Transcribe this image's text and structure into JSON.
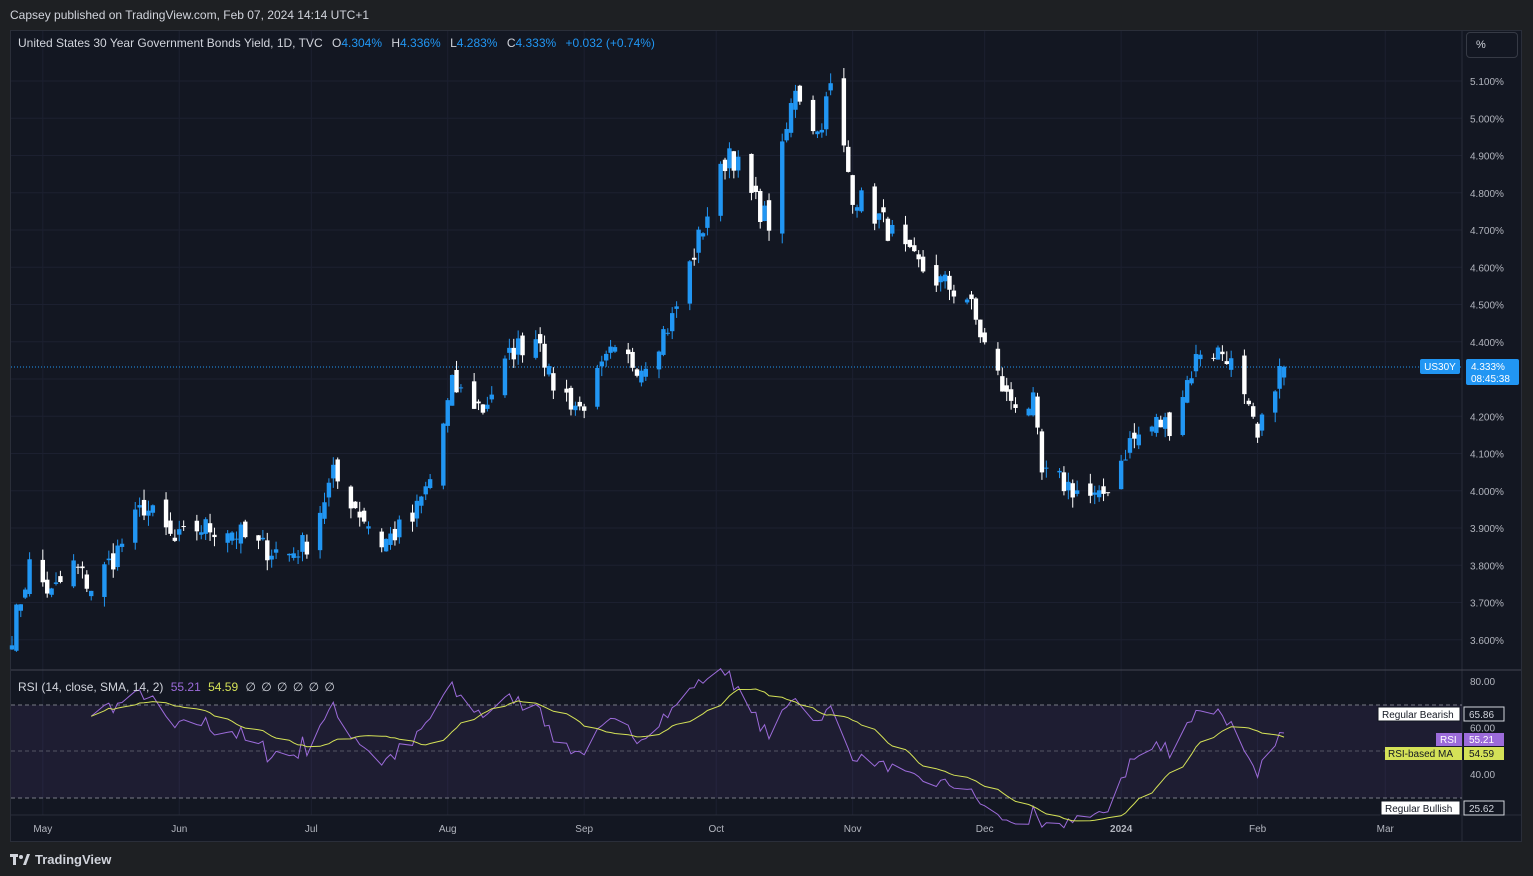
{
  "publisher": "Capsey published on TradingView.com, Feb 07, 2024 14:14 UTC+1",
  "legend": {
    "title": "United States 30 Year Government Bonds Yield, 1D, TVC",
    "o_label": "O",
    "o_value": "4.304%",
    "h_label": "H",
    "h_value": "4.336%",
    "l_label": "L",
    "l_value": "4.283%",
    "c_label": "C",
    "c_value": "4.333%",
    "change": "+0.032 (+0.74%)"
  },
  "scale_button": "%",
  "price_tag": {
    "symbol": "US30Y",
    "price": "4.333%",
    "countdown": "08:45:38"
  },
  "rsi": {
    "title": "RSI (14, close, SMA, 14, 2)",
    "rsi_value": "55.21",
    "ma_value": "54.59",
    "nulls": "∅ ∅ ∅ ∅ ∅ ∅",
    "tags": {
      "bearish_label": "Regular Bearish",
      "bearish_value": "65.86",
      "rsi_label": "RSI",
      "rsi_value": "55.21",
      "ma_label": "RSI-based MA",
      "ma_value": "54.59",
      "bullish_label": "Regular Bullish",
      "bullish_value": "25.62"
    }
  },
  "footer": {
    "brand": "TradingView"
  },
  "colors": {
    "up": "#2196f3",
    "down": "#ffffff",
    "rsi": "#9c6bda",
    "rsi_ma": "#d4e157",
    "background": "#131722",
    "accent": "#2962ff"
  },
  "chart_data": {
    "type": "candlestick",
    "series": [
      {
        "name": "US30Y",
        "ohlc": []
      }
    ],
    "waypoints": [
      [
        "2023-04-24",
        3.62
      ],
      [
        "2023-04-28",
        3.8
      ],
      [
        "2023-05-03",
        3.72
      ],
      [
        "2023-05-08",
        3.8
      ],
      [
        "2023-05-12",
        3.74
      ],
      [
        "2023-05-17",
        3.82
      ],
      [
        "2023-05-24",
        3.96
      ],
      [
        "2023-05-31",
        3.86
      ],
      [
        "2023-06-05",
        3.9
      ],
      [
        "2023-06-12",
        3.9
      ],
      [
        "2023-06-19",
        3.85
      ],
      [
        "2023-06-26",
        3.83
      ],
      [
        "2023-06-30",
        3.86
      ],
      [
        "2023-07-06",
        4.04
      ],
      [
        "2023-07-11",
        3.96
      ],
      [
        "2023-07-17",
        3.86
      ],
      [
        "2023-07-24",
        3.92
      ],
      [
        "2023-07-28",
        4.03
      ],
      [
        "2023-08-02",
        4.28
      ],
      [
        "2023-08-09",
        4.22
      ],
      [
        "2023-08-16",
        4.38
      ],
      [
        "2023-08-22",
        4.42
      ],
      [
        "2023-08-24",
        4.3
      ],
      [
        "2023-08-31",
        4.22
      ],
      [
        "2023-09-07",
        4.36
      ],
      [
        "2023-09-14",
        4.34
      ],
      [
        "2023-09-21",
        4.46
      ],
      [
        "2023-09-28",
        4.71
      ],
      [
        "2023-10-04",
        4.92
      ],
      [
        "2023-10-09",
        4.79
      ],
      [
        "2023-10-13",
        4.72
      ],
      [
        "2023-10-19",
        5.09
      ],
      [
        "2023-10-24",
        4.96
      ],
      [
        "2023-10-27",
        5.08
      ],
      [
        "2023-11-01",
        4.8
      ],
      [
        "2023-11-08",
        4.72
      ],
      [
        "2023-11-14",
        4.62
      ],
      [
        "2023-11-21",
        4.56
      ],
      [
        "2023-11-27",
        4.52
      ],
      [
        "2023-12-01",
        4.39
      ],
      [
        "2023-12-06",
        4.25
      ],
      [
        "2023-12-12",
        4.23
      ],
      [
        "2023-12-14",
        4.04
      ],
      [
        "2023-12-19",
        4.02
      ],
      [
        "2023-12-27",
        3.97
      ],
      [
        "2024-01-03",
        4.13
      ],
      [
        "2024-01-09",
        4.18
      ],
      [
        "2024-01-12",
        4.18
      ],
      [
        "2024-01-19",
        4.38
      ],
      [
        "2024-01-25",
        4.37
      ],
      [
        "2024-01-31",
        4.17
      ],
      [
        "2024-02-01",
        4.13
      ],
      [
        "2024-02-05",
        4.3
      ],
      [
        "2024-02-07",
        4.333
      ]
    ],
    "y_ticks": [
      "5.100%",
      "5.000%",
      "4.900%",
      "4.800%",
      "4.700%",
      "4.600%",
      "4.500%",
      "4.400%",
      "4.300%",
      "4.200%",
      "4.100%",
      "4.000%",
      "3.900%",
      "3.800%",
      "3.700%",
      "3.600%"
    ],
    "x_ticks": [
      {
        "date": "2023-05-01",
        "label": "May"
      },
      {
        "date": "2023-06-01",
        "label": "Jun"
      },
      {
        "date": "2023-07-01",
        "label": "Jul"
      },
      {
        "date": "2023-08-01",
        "label": "Aug"
      },
      {
        "date": "2023-09-01",
        "label": "Sep"
      },
      {
        "date": "2023-10-01",
        "label": "Oct"
      },
      {
        "date": "2023-11-01",
        "label": "Nov"
      },
      {
        "date": "2023-12-01",
        "label": "Dec"
      },
      {
        "date": "2024-01-01",
        "label": "2024"
      },
      {
        "date": "2024-02-01",
        "label": "Feb"
      },
      {
        "date": "2024-03-01",
        "label": "Mar"
      }
    ],
    "ylim": [
      3.52,
      5.15
    ],
    "xlim": [
      "2023-04-24",
      "2024-03-18"
    ],
    "rsi_panel": {
      "ticks": [
        "80.00",
        "60.00",
        "40.00"
      ],
      "levels": [
        65.86,
        25.62
      ],
      "ylim": [
        22,
        83
      ]
    }
  }
}
